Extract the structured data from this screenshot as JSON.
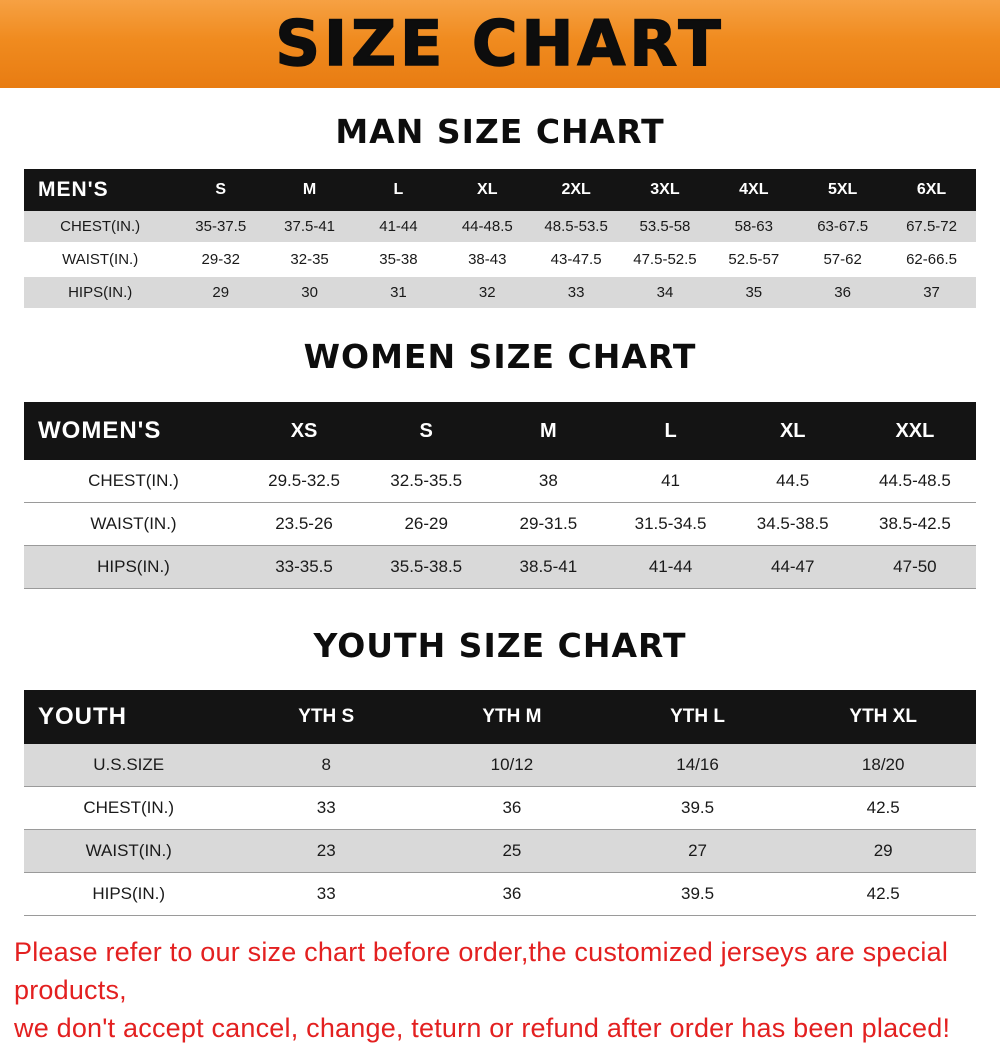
{
  "banner": {
    "title": "SIZE CHART",
    "bg_color": "#f08b1f",
    "text_color": "#0d0d0d"
  },
  "colors": {
    "table_header_bg": "#141414",
    "table_header_text": "#ffffff",
    "row_stripe": "#d9d9d9",
    "footer_text": "#e32020"
  },
  "sections": [
    {
      "heading": "MAN SIZE CHART",
      "table": {
        "header": [
          "MEN'S",
          "S",
          "M",
          "L",
          "XL",
          "2XL",
          "3XL",
          "4XL",
          "5XL",
          "6XL"
        ],
        "rows": [
          [
            "CHEST(IN.)",
            "35-37.5",
            "37.5-41",
            "41-44",
            "44-48.5",
            "48.5-53.5",
            "53.5-58",
            "58-63",
            "63-67.5",
            "67.5-72"
          ],
          [
            "WAIST(IN.)",
            "29-32",
            "32-35",
            "35-38",
            "38-43",
            "43-47.5",
            "47.5-52.5",
            "52.5-57",
            "57-62",
            "62-66.5"
          ],
          [
            "HIPS(IN.)",
            "29",
            "30",
            "31",
            "32",
            "33",
            "34",
            "35",
            "36",
            "37"
          ]
        ]
      }
    },
    {
      "heading": "WOMEN SIZE CHART",
      "table": {
        "header": [
          "WOMEN'S",
          "XS",
          "S",
          "M",
          "L",
          "XL",
          "XXL"
        ],
        "rows": [
          [
            "CHEST(IN.)",
            "29.5-32.5",
            "32.5-35.5",
            "38",
            "41",
            "44.5",
            "44.5-48.5"
          ],
          [
            "WAIST(IN.)",
            "23.5-26",
            "26-29",
            "29-31.5",
            "31.5-34.5",
            "34.5-38.5",
            "38.5-42.5"
          ],
          [
            "HIPS(IN.)",
            "33-35.5",
            "35.5-38.5",
            "38.5-41",
            "41-44",
            "44-47",
            "47-50"
          ]
        ]
      }
    },
    {
      "heading": "YOUTH SIZE CHART",
      "table": {
        "header": [
          "YOUTH",
          "YTH S",
          "YTH M",
          "YTH L",
          "YTH XL"
        ],
        "rows": [
          [
            "U.S.SIZE",
            "8",
            "10/12",
            "14/16",
            "18/20"
          ],
          [
            "CHEST(IN.)",
            "33",
            "36",
            "39.5",
            "42.5"
          ],
          [
            "WAIST(IN.)",
            "23",
            "25",
            "27",
            "29"
          ],
          [
            "HIPS(IN.)",
            "33",
            "36",
            "39.5",
            "42.5"
          ]
        ]
      }
    }
  ],
  "footer": {
    "line1": "Please refer to our size chart before order,the customized jerseys are special products,",
    "line2": "we don't accept cancel, change, teturn or refund after order has been placed!"
  }
}
